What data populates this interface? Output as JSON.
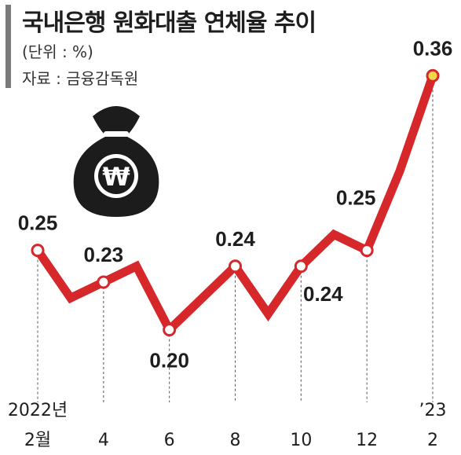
{
  "title": "국내은행 원화대출 연체율 추이",
  "subtitle": "(단위 : %)",
  "source": "자료 : 금융감독원",
  "icon": "won-money-bag-icon",
  "colors": {
    "line": "#d6282b",
    "marker_fill": "#ffffff",
    "last_marker_fill": "#f5d64a",
    "bag": "#1c1c1c",
    "text": "#1e1e1e",
    "title_bar": "#7a7a7a"
  },
  "chart_data": {
    "type": "line",
    "title": "국내은행 원화대출 연체율 추이",
    "ylabel": "",
    "unit": "%",
    "xlabel": "",
    "x": [
      "2022-02",
      "2022-03",
      "2022-04",
      "2022-05",
      "2022-06",
      "2022-07",
      "2022-08",
      "2022-09",
      "2022-10",
      "2022-11",
      "2022-12",
      "2023-01",
      "2023-02"
    ],
    "values": [
      0.25,
      0.22,
      0.23,
      0.24,
      0.2,
      0.22,
      0.24,
      0.21,
      0.24,
      0.26,
      0.25,
      0.3,
      0.36
    ],
    "tick_labels": [
      {
        "x": "2022-02",
        "line1": "2022년",
        "line2": "2월"
      },
      {
        "x": "2022-04",
        "line1": "",
        "line2": "4"
      },
      {
        "x": "2022-06",
        "line1": "",
        "line2": "6"
      },
      {
        "x": "2022-08",
        "line1": "",
        "line2": "8"
      },
      {
        "x": "2022-10",
        "line1": "",
        "line2": "10"
      },
      {
        "x": "2022-12",
        "line1": "",
        "line2": "12"
      },
      {
        "x": "2023-02",
        "line1": "’23",
        "line2": "2"
      }
    ],
    "labeled_points": [
      {
        "x": "2022-02",
        "label": "0.25",
        "position": "above"
      },
      {
        "x": "2022-04",
        "label": "0.23",
        "position": "above"
      },
      {
        "x": "2022-06",
        "label": "0.20",
        "position": "below"
      },
      {
        "x": "2022-08",
        "label": "0.24",
        "position": "above"
      },
      {
        "x": "2022-10",
        "label": "0.24",
        "position": "below-right"
      },
      {
        "x": "2022-12",
        "label": "0.25",
        "position": "above-left"
      },
      {
        "x": "2023-02",
        "label": "0.36",
        "position": "above"
      }
    ],
    "grid": false,
    "legend": "none"
  }
}
